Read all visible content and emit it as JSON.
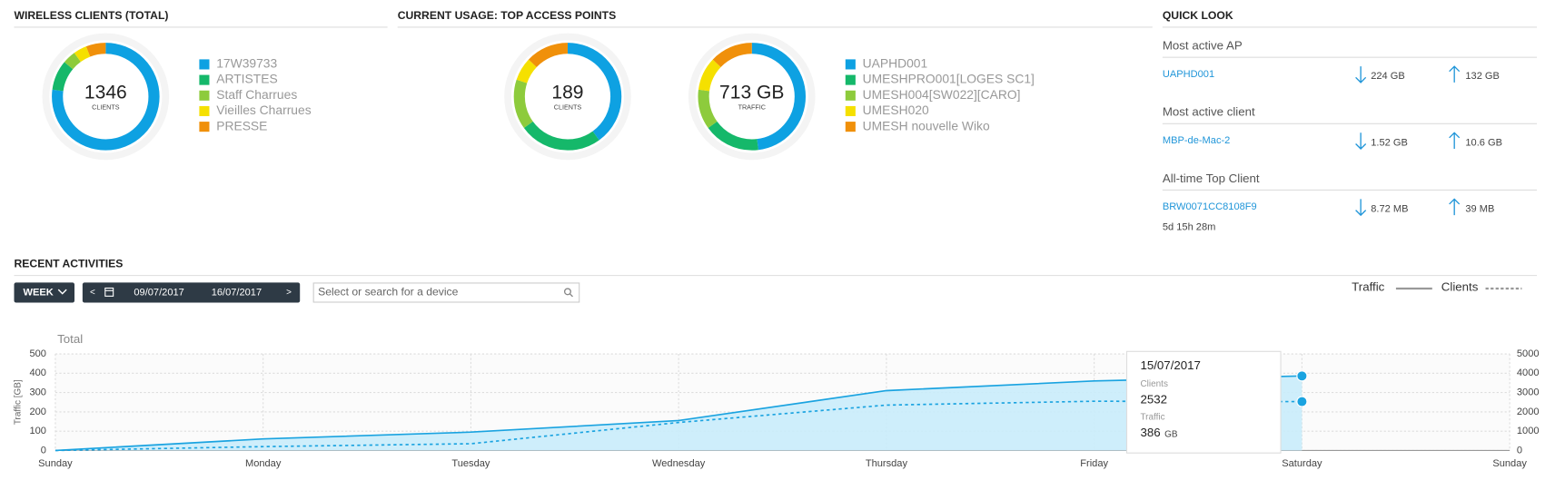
{
  "wireless_clients": {
    "title": "WIRELESS CLIENTS (TOTAL)",
    "center_value": "1346",
    "center_label": "CLIENTS",
    "segments": [
      {
        "name": "17W39733",
        "color": "#0ea1e2",
        "value": 77
      },
      {
        "name": "ARTISTES",
        "color": "#15b86a",
        "value": 9
      },
      {
        "name": "Staff Charrues",
        "color": "#8dcb3c",
        "value": 4
      },
      {
        "name": "Vieilles Charrues",
        "color": "#f5e000",
        "value": 4
      },
      {
        "name": "PRESSE",
        "color": "#f0900a",
        "value": 6
      }
    ]
  },
  "top_access_points": {
    "title": "CURRENT USAGE: TOP ACCESS POINTS",
    "clients_donut": {
      "center_value": "189",
      "center_label": "CLIENTS",
      "values": [
        40,
        25,
        15,
        7,
        13
      ]
    },
    "traffic_donut": {
      "center_value": "713 GB",
      "center_label": "TRAFFIC",
      "values": [
        48,
        17,
        12,
        10,
        13
      ]
    },
    "segments": [
      {
        "name": "UAPHD001",
        "color": "#0ea1e2"
      },
      {
        "name": "UMESHPRO001[LOGES SC1]",
        "color": "#15b86a"
      },
      {
        "name": "UMESH004[SW022][CARO]",
        "color": "#8dcb3c"
      },
      {
        "name": "UMESH020",
        "color": "#f5e000"
      },
      {
        "name": "UMESH nouvelle Wiko",
        "color": "#f0900a"
      }
    ]
  },
  "quick_look": {
    "title": "QUICK LOOK",
    "rows": [
      {
        "heading": "Most active AP",
        "name": "UAPHD001",
        "down": "224 GB",
        "up": "132 GB"
      },
      {
        "heading": "Most active client",
        "name": "MBP-de-Mac-2",
        "down": "1.52 GB",
        "up": "10.6 GB"
      },
      {
        "heading": "All-time Top Client",
        "name": "BRW0071CC8108F9",
        "down": "8.72 MB",
        "up": "39 MB",
        "detail": "5d 15h 28m"
      }
    ]
  },
  "recent_activities": {
    "title": "RECENT ACTIVITIES",
    "period": "WEEK",
    "prev": "<",
    "next": ">",
    "start_date": "09/07/2017",
    "end_date": "16/07/2017",
    "search_placeholder": "Select or search for a device"
  },
  "chart_data": {
    "type": "line",
    "title": "Total",
    "y_label": "Traffic [GB]",
    "categories": [
      "Sunday",
      "Monday",
      "Tuesday",
      "Wednesday",
      "Thursday",
      "Friday",
      "Saturday",
      "Sunday"
    ],
    "series": [
      {
        "name": "Traffic",
        "color": "#1aa3e0",
        "line_style": "solid",
        "fill": "#c9ecfb",
        "values": [
          0,
          60,
          95,
          155,
          310,
          360,
          386,
          null
        ]
      },
      {
        "name": "Clients",
        "color": "#1aa3e0",
        "line_style": "dashed",
        "axis": "y2",
        "values": [
          0,
          200,
          350,
          1450,
          2350,
          2550,
          2532,
          null
        ]
      }
    ],
    "ylim": [
      0,
      500
    ],
    "yticks": [
      0,
      100,
      200,
      300,
      400,
      500
    ],
    "y2lim": [
      0,
      5000
    ],
    "y2ticks": [
      0,
      1000,
      2000,
      3000,
      4000,
      5000
    ],
    "grid": true,
    "tooltip": {
      "date": "15/07/2017",
      "clients_label": "Clients",
      "clients_value": "2532",
      "traffic_label": "Traffic",
      "traffic_value": "386",
      "traffic_unit": "GB"
    }
  }
}
